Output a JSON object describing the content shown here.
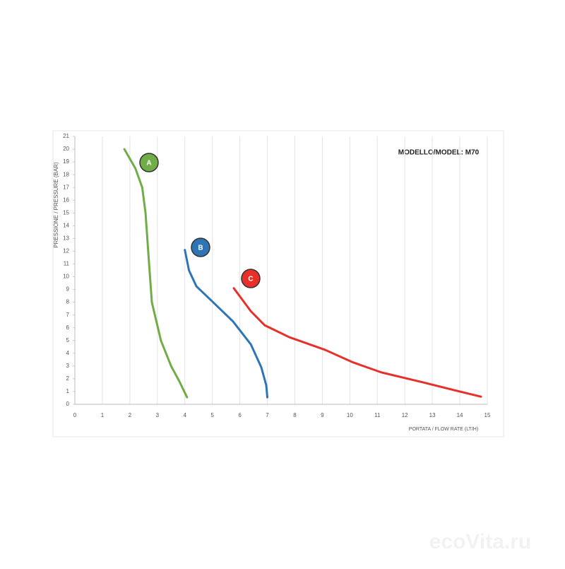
{
  "chart_data": {
    "type": "line",
    "title": "MODELLO/MODEL: M70",
    "x_label": "PORTATA / FLOW RATE (LT/H)",
    "y_label": "PRESSIONE / PRESSURE (BAR)",
    "xlim": [
      0,
      15
    ],
    "xticks": [
      0,
      1,
      2,
      3,
      4,
      5,
      6,
      7,
      8,
      9,
      10,
      11,
      12,
      13,
      14,
      15
    ],
    "ylim": [
      0,
      21
    ],
    "yticks": [
      0,
      1,
      2,
      3,
      4,
      5,
      6,
      7,
      8,
      9,
      10,
      11,
      12,
      13,
      14,
      15,
      16,
      17,
      18,
      19,
      20,
      21
    ],
    "grid": "x",
    "series": [
      {
        "name": "A",
        "color": "#70ad47",
        "x": [
          1.8,
          2.2,
          2.45,
          2.57,
          2.7,
          2.8,
          3.13,
          3.5,
          3.8,
          4.08
        ],
        "values": [
          20,
          18.5,
          17,
          15,
          11,
          8,
          5,
          3,
          1.8,
          0.55
        ]
      },
      {
        "name": "B",
        "color": "#2e75b6",
        "x": [
          4.0,
          4.15,
          4.42,
          4.98,
          5.75,
          6.4,
          6.78,
          6.96,
          7.0
        ],
        "values": [
          12.1,
          10.5,
          9.25,
          8.1,
          6.5,
          4.7,
          2.9,
          1.5,
          0.55
        ]
      },
      {
        "name": "C",
        "color": "#e8302a",
        "x": [
          5.78,
          6.4,
          6.9,
          7.8,
          9.1,
          10.1,
          11.15,
          12.7,
          14.0,
          14.77
        ],
        "values": [
          9.1,
          7.3,
          6.2,
          5.26,
          4.27,
          3.3,
          2.5,
          1.7,
          1.0,
          0.6
        ]
      }
    ],
    "watermark": "ecoVita.ru"
  }
}
